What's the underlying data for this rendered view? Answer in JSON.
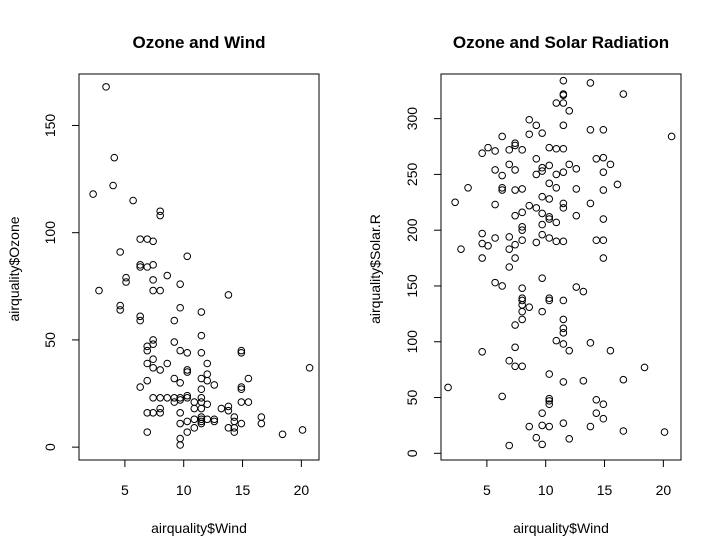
{
  "chart_data": [
    {
      "type": "scatter",
      "title": "Ozone and Wind",
      "xlabel": "airquality$Wind",
      "ylabel": "airquality$Ozone",
      "xlim": [
        1.1,
        21.5
      ],
      "ylim": [
        -6,
        174
      ],
      "xticks": [
        5,
        10,
        15,
        20
      ],
      "yticks": [
        0,
        50,
        100,
        150
      ],
      "grid": false,
      "points": [
        [
          3.4,
          168
        ],
        [
          4.1,
          135
        ],
        [
          4.0,
          122
        ],
        [
          2.3,
          118
        ],
        [
          5.7,
          115
        ],
        [
          8.0,
          110
        ],
        [
          8.0,
          108
        ],
        [
          6.3,
          97
        ],
        [
          6.9,
          97
        ],
        [
          7.4,
          96
        ],
        [
          4.6,
          91
        ],
        [
          10.3,
          89
        ],
        [
          6.3,
          85
        ],
        [
          6.3,
          84
        ],
        [
          7.4,
          85
        ],
        [
          6.9,
          84
        ],
        [
          8.6,
          80
        ],
        [
          5.1,
          79
        ],
        [
          5.1,
          77
        ],
        [
          7.4,
          78
        ],
        [
          9.7,
          76
        ],
        [
          7.4,
          73
        ],
        [
          2.8,
          73
        ],
        [
          8.0,
          73
        ],
        [
          13.8,
          71
        ],
        [
          4.6,
          66
        ],
        [
          4.6,
          64
        ],
        [
          9.7,
          65
        ],
        [
          11.5,
          63
        ],
        [
          6.3,
          61
        ],
        [
          6.3,
          59
        ],
        [
          9.2,
          59
        ],
        [
          11.5,
          52
        ],
        [
          7.4,
          50
        ],
        [
          7.4,
          48
        ],
        [
          6.9,
          47
        ],
        [
          6.9,
          45
        ],
        [
          9.7,
          45
        ],
        [
          10.3,
          44
        ],
        [
          11.5,
          44
        ],
        [
          14.9,
          45
        ],
        [
          14.9,
          44
        ],
        [
          7.4,
          41
        ],
        [
          9.2,
          49
        ],
        [
          12.0,
          39
        ],
        [
          8.6,
          39
        ],
        [
          7.4,
          37
        ],
        [
          6.9,
          39
        ],
        [
          8.0,
          36
        ],
        [
          10.3,
          36
        ],
        [
          10.3,
          35
        ],
        [
          12.0,
          34
        ],
        [
          6.3,
          28
        ],
        [
          6.9,
          31
        ],
        [
          9.2,
          32
        ],
        [
          9.7,
          30
        ],
        [
          11.5,
          32
        ],
        [
          12.0,
          31
        ],
        [
          12.6,
          29
        ],
        [
          11.5,
          27
        ],
        [
          14.9,
          27
        ],
        [
          14.9,
          28
        ],
        [
          16.6,
          14
        ],
        [
          16.6,
          11
        ],
        [
          15.5,
          32
        ],
        [
          20.7,
          37
        ],
        [
          20.1,
          8
        ],
        [
          18.4,
          6
        ],
        [
          8.0,
          23
        ],
        [
          8.6,
          23
        ],
        [
          9.2,
          23
        ],
        [
          9.7,
          23
        ],
        [
          10.3,
          24
        ],
        [
          10.3,
          23
        ],
        [
          11.5,
          23
        ],
        [
          11.5,
          21
        ],
        [
          7.4,
          23
        ],
        [
          9.2,
          21
        ],
        [
          9.7,
          22
        ],
        [
          10.9,
          21
        ],
        [
          10.9,
          18
        ],
        [
          12.0,
          20
        ],
        [
          11.5,
          18
        ],
        [
          7.4,
          16
        ],
        [
          6.9,
          16
        ],
        [
          8.0,
          18
        ],
        [
          8.0,
          16
        ],
        [
          9.7,
          16
        ],
        [
          10.9,
          13
        ],
        [
          11.5,
          13
        ],
        [
          11.5,
          14
        ],
        [
          12.6,
          13
        ],
        [
          13.2,
          18
        ],
        [
          13.8,
          19
        ],
        [
          13.8,
          17
        ],
        [
          14.3,
          14
        ],
        [
          14.3,
          12
        ],
        [
          14.9,
          21
        ],
        [
          15.5,
          21
        ],
        [
          12.0,
          13
        ],
        [
          11.5,
          11
        ],
        [
          11.5,
          12
        ],
        [
          12.6,
          12
        ],
        [
          13.8,
          9
        ],
        [
          14.3,
          9
        ],
        [
          14.3,
          7
        ],
        [
          14.9,
          11
        ],
        [
          10.3,
          12
        ],
        [
          10.9,
          9
        ],
        [
          10.3,
          7
        ],
        [
          9.7,
          4
        ],
        [
          9.7,
          1
        ],
        [
          6.9,
          7
        ],
        [
          9.7,
          11
        ]
      ]
    },
    {
      "type": "scatter",
      "title": "Ozone and Solar Radiation",
      "xlabel": "airquality$Wind",
      "ylabel": "airquality$Solar.R",
      "xlim": [
        1.1,
        21.5
      ],
      "ylim": [
        -6,
        340
      ],
      "xticks": [
        5,
        10,
        15,
        20
      ],
      "yticks": [
        0,
        50,
        100,
        150,
        200,
        250,
        300
      ],
      "grid": false,
      "points": [
        [
          11.5,
          334
        ],
        [
          13.8,
          332
        ],
        [
          16.6,
          322
        ],
        [
          11.5,
          322
        ],
        [
          11.5,
          321
        ],
        [
          10.9,
          314
        ],
        [
          11.5,
          314
        ],
        [
          12.0,
          307
        ],
        [
          8.6,
          299
        ],
        [
          9.2,
          294
        ],
        [
          11.5,
          294
        ],
        [
          14.9,
          290
        ],
        [
          13.8,
          290
        ],
        [
          8.6,
          286
        ],
        [
          9.7,
          287
        ],
        [
          20.7,
          284
        ],
        [
          6.3,
          284
        ],
        [
          7.4,
          278
        ],
        [
          5.1,
          274
        ],
        [
          7.4,
          276
        ],
        [
          5.7,
          271
        ],
        [
          6.9,
          272
        ],
        [
          4.6,
          269
        ],
        [
          8.0,
          272
        ],
        [
          10.3,
          274
        ],
        [
          10.9,
          273
        ],
        [
          11.5,
          273
        ],
        [
          14.9,
          265
        ],
        [
          14.3,
          264
        ],
        [
          9.2,
          264
        ],
        [
          12.0,
          259
        ],
        [
          15.5,
          259
        ],
        [
          5.7,
          254
        ],
        [
          9.7,
          256
        ],
        [
          10.3,
          258
        ],
        [
          9.7,
          253
        ],
        [
          6.9,
          259
        ],
        [
          7.4,
          254
        ],
        [
          6.3,
          249
        ],
        [
          9.2,
          250
        ],
        [
          11.5,
          252
        ],
        [
          12.6,
          255
        ],
        [
          10.9,
          250
        ],
        [
          14.9,
          252
        ],
        [
          10.3,
          242
        ],
        [
          16.1,
          241
        ],
        [
          3.4,
          238
        ],
        [
          6.3,
          238
        ],
        [
          6.3,
          236
        ],
        [
          7.4,
          236
        ],
        [
          8.0,
          237
        ],
        [
          10.9,
          238
        ],
        [
          12.6,
          237
        ],
        [
          14.9,
          236
        ],
        [
          9.7,
          230
        ],
        [
          10.3,
          228
        ],
        [
          11.5,
          224
        ],
        [
          13.8,
          224
        ],
        [
          2.3,
          225
        ],
        [
          5.7,
          223
        ],
        [
          8.6,
          222
        ],
        [
          9.2,
          220
        ],
        [
          11.5,
          220
        ],
        [
          8.0,
          216
        ],
        [
          9.7,
          215
        ],
        [
          7.4,
          213
        ],
        [
          10.3,
          212
        ],
        [
          8.0,
          203
        ],
        [
          8.0,
          200
        ],
        [
          10.3,
          210
        ],
        [
          10.9,
          207
        ],
        [
          12.6,
          213
        ],
        [
          9.7,
          205
        ],
        [
          14.9,
          210
        ],
        [
          4.6,
          197
        ],
        [
          5.7,
          193
        ],
        [
          6.9,
          194
        ],
        [
          8.0,
          191
        ],
        [
          9.7,
          196
        ],
        [
          10.3,
          193
        ],
        [
          11.5,
          190
        ],
        [
          14.3,
          191
        ],
        [
          14.9,
          191
        ],
        [
          4.6,
          188
        ],
        [
          5.1,
          186
        ],
        [
          7.4,
          187
        ],
        [
          9.2,
          189
        ],
        [
          2.8,
          183
        ],
        [
          6.9,
          183
        ],
        [
          10.9,
          190
        ],
        [
          4.6,
          175
        ],
        [
          7.4,
          175
        ],
        [
          6.9,
          167
        ],
        [
          14.9,
          175
        ],
        [
          9.7,
          157
        ],
        [
          5.7,
          153
        ],
        [
          6.3,
          150
        ],
        [
          12.6,
          149
        ],
        [
          13.2,
          145
        ],
        [
          8.0,
          148
        ],
        [
          8.0,
          139
        ],
        [
          8.0,
          137
        ],
        [
          8.0,
          133
        ],
        [
          10.3,
          139
        ],
        [
          10.3,
          137
        ],
        [
          11.5,
          137
        ],
        [
          8.6,
          131
        ],
        [
          9.7,
          127
        ],
        [
          8.0,
          127
        ],
        [
          7.4,
          115
        ],
        [
          8.0,
          120
        ],
        [
          11.5,
          120
        ],
        [
          11.5,
          112
        ],
        [
          11.5,
          108
        ],
        [
          10.9,
          101
        ],
        [
          7.4,
          95
        ],
        [
          11.5,
          98
        ],
        [
          12.0,
          92
        ],
        [
          13.8,
          99
        ],
        [
          15.5,
          92
        ],
        [
          4.6,
          91
        ],
        [
          6.9,
          83
        ],
        [
          7.4,
          78
        ],
        [
          10.3,
          71
        ],
        [
          11.5,
          64
        ],
        [
          13.2,
          65
        ],
        [
          16.6,
          66
        ],
        [
          18.4,
          77
        ],
        [
          8.0,
          78
        ],
        [
          6.3,
          51
        ],
        [
          10.3,
          49
        ],
        [
          10.3,
          47
        ],
        [
          10.3,
          44
        ],
        [
          14.3,
          48
        ],
        [
          14.9,
          44
        ],
        [
          9.7,
          36
        ],
        [
          9.7,
          25
        ],
        [
          11.5,
          27
        ],
        [
          13.8,
          24
        ],
        [
          14.3,
          36
        ],
        [
          14.9,
          31
        ],
        [
          8.6,
          24
        ],
        [
          9.2,
          14
        ],
        [
          10.3,
          24
        ],
        [
          16.6,
          20
        ],
        [
          20.1,
          19
        ],
        [
          12.0,
          13
        ],
        [
          9.7,
          8
        ],
        [
          6.9,
          7
        ],
        [
          1.7,
          59
        ]
      ]
    }
  ]
}
